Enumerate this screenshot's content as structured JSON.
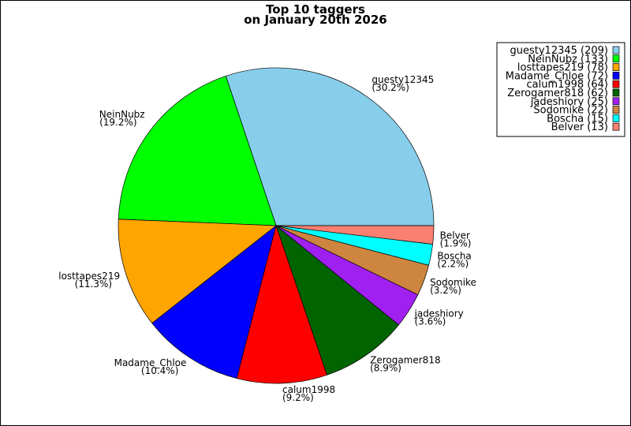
{
  "chart_data": {
    "type": "pie",
    "title": "Top 10 taggers",
    "subtitle": "on January 20th 2026",
    "legend_position": "top-right",
    "slices": [
      {
        "label": "guesty12345",
        "value": 209,
        "percent": "30.2%",
        "legend": "guesty12345 (209)",
        "color": "#87ceeb"
      },
      {
        "label": "NeinNubz",
        "value": 133,
        "percent": "19.2%",
        "legend": "NeinNubz (133)",
        "color": "#00ff00"
      },
      {
        "label": "losttapes219",
        "value": 78,
        "percent": "11.3%",
        "legend": "losttapes219 (78)",
        "color": "#ffa500"
      },
      {
        "label": "Madame_Chloe",
        "value": 72,
        "percent": "10.4%",
        "legend": "Madame_Chloe (72)",
        "color": "#0000ff"
      },
      {
        "label": "calum1998",
        "value": 64,
        "percent": "9.2%",
        "legend": "calum1998 (64)",
        "color": "#ff0000"
      },
      {
        "label": "Zerogamer818",
        "value": 62,
        "percent": "8.9%",
        "legend": "Zerogamer818 (62)",
        "color": "#006400"
      },
      {
        "label": "jadeshiory",
        "value": 25,
        "percent": "3.6%",
        "legend": "jadeshiory (25)",
        "color": "#a020f0"
      },
      {
        "label": "Sodomike",
        "value": 22,
        "percent": "3.2%",
        "legend": "Sodomike (22)",
        "color": "#cd853f"
      },
      {
        "label": "Boscha",
        "value": 15,
        "percent": "2.2%",
        "legend": "Boscha (15)",
        "color": "#00ffff"
      },
      {
        "label": "Belver",
        "value": 13,
        "percent": "1.9%",
        "legend": "Belver (13)",
        "color": "#fa8072"
      }
    ]
  }
}
